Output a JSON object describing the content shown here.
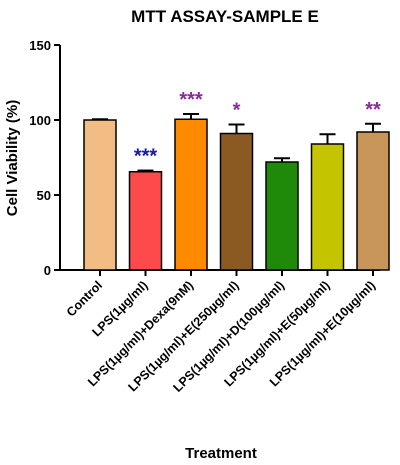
{
  "chart_data": {
    "type": "bar",
    "title": "MTT ASSAY-SAMPLE E",
    "xlabel": "Treatment",
    "ylabel": "Cell Viability (%)",
    "ylim": [
      0,
      150
    ],
    "yticks": [
      "0",
      "50",
      "100",
      "150"
    ],
    "categories": [
      "Control",
      "LPS(1µg/ml)",
      "LPS(1µg/ml)+Dexa(9nM)",
      "LPS(1µg/ml)+E(250µg/ml)",
      "LPS(1µg/ml)+D(100µg/ml)",
      "LPS(1µg/ml)+E(50µg/ml)",
      "LPS(1µg/ml)+E(10µg/ml)"
    ],
    "values": [
      100,
      65.5,
      100.5,
      91,
      72,
      84,
      92
    ],
    "errors": [
      0.5,
      0.8,
      3.5,
      6,
      2.5,
      6.5,
      5.5
    ],
    "bar_colors": [
      "#f2bd84",
      "#fe4a4a",
      "#fe8a00",
      "#8b5a22",
      "#1f8a0a",
      "#c4c400",
      "#c8965a"
    ],
    "significance": [
      "",
      "***",
      "***",
      "*",
      "",
      "",
      "**"
    ],
    "significance_colors": [
      "",
      "#1a1aa0",
      "#8a2a9a",
      "#8a2a9a",
      "",
      "",
      "#8a2a9a"
    ],
    "grid": false,
    "legend": "none"
  }
}
